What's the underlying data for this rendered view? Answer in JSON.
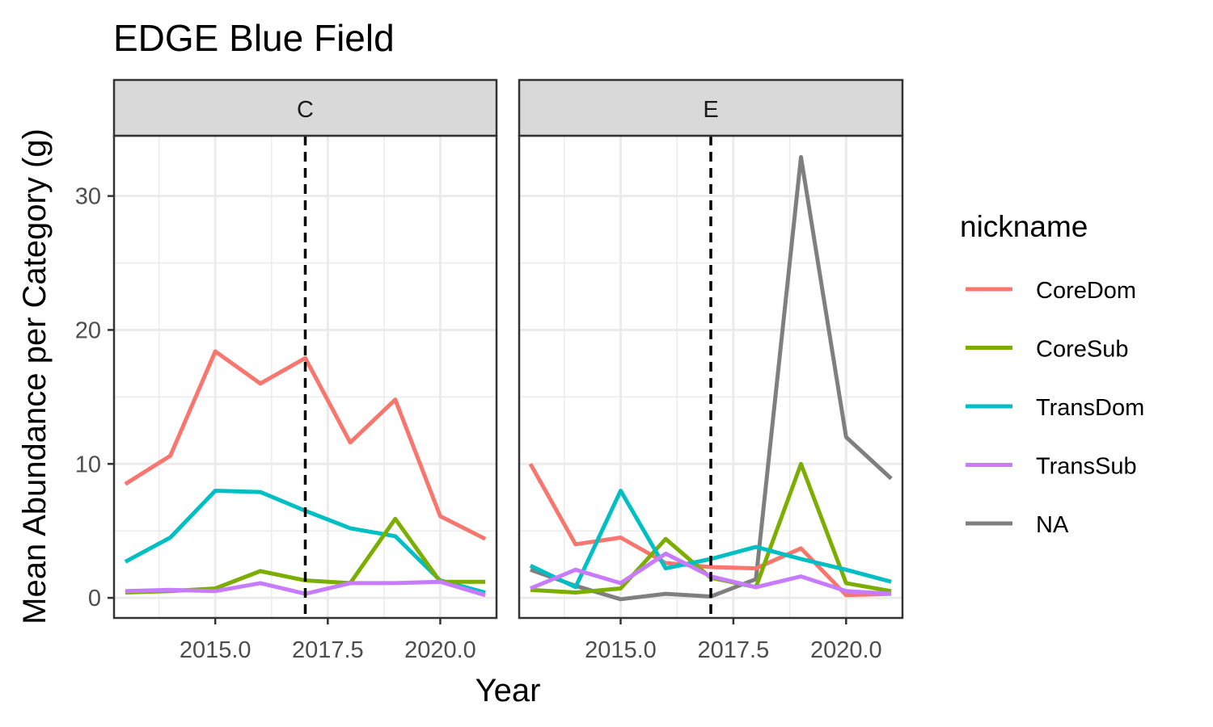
{
  "chart_data": {
    "type": "line",
    "title": "EDGE Blue Field",
    "xlabel": "Year",
    "ylabel": "Mean Abundance per Category (g)",
    "xlim": [
      2012.75,
      2021.25
    ],
    "ylim": [
      -1.5,
      34.5
    ],
    "x_ticks": [
      2015.0,
      2017.5,
      2020.0
    ],
    "x_tick_labels": [
      "2015.0",
      "2017.5",
      "2020.0"
    ],
    "y_ticks": [
      0,
      10,
      20,
      30
    ],
    "y_tick_labels": [
      "0",
      "10",
      "20",
      "30"
    ],
    "reference_line": {
      "x": 2017,
      "style": "dashed"
    },
    "grid": true,
    "legend": {
      "title": "nickname",
      "position": "right",
      "entries": [
        {
          "name": "CoreDom",
          "color": "#F8766D"
        },
        {
          "name": "CoreSub",
          "color": "#7CAE00"
        },
        {
          "name": "TransDom",
          "color": "#00BFC4"
        },
        {
          "name": "TransSub",
          "color": "#C77CFF"
        },
        {
          "name": "NA",
          "color": "#7F7F7F"
        }
      ]
    },
    "panels": [
      {
        "label": "C",
        "series": [
          {
            "name": "CoreDom",
            "x": [
              2013,
              2014,
              2015,
              2016,
              2017,
              2018,
              2019,
              2020,
              2021
            ],
            "values": [
              8.5,
              10.6,
              18.4,
              16.0,
              17.9,
              11.6,
              14.8,
              6.1,
              4.4
            ]
          },
          {
            "name": "TransDom",
            "x": [
              2013,
              2014,
              2015,
              2016,
              2017,
              2018,
              2019,
              2020,
              2021
            ],
            "values": [
              2.7,
              4.5,
              8.0,
              7.9,
              6.5,
              5.2,
              4.6,
              1.3,
              0.4
            ]
          },
          {
            "name": "CoreSub",
            "x": [
              2013,
              2014,
              2015,
              2016,
              2017,
              2018,
              2019,
              2020,
              2021
            ],
            "values": [
              0.4,
              0.5,
              0.7,
              2.0,
              1.3,
              1.1,
              5.9,
              1.2,
              1.2
            ]
          },
          {
            "name": "TransSub",
            "x": [
              2013,
              2014,
              2015,
              2016,
              2017,
              2018,
              2019,
              2020,
              2021
            ],
            "values": [
              0.5,
              0.6,
              0.5,
              1.1,
              0.3,
              1.1,
              1.1,
              1.2,
              0.2
            ]
          }
        ]
      },
      {
        "label": "E",
        "series": [
          {
            "name": "NA",
            "x": [
              2013,
              2014,
              2015,
              2016,
              2017,
              2018,
              2019,
              2020,
              2021
            ],
            "values": [
              2.1,
              0.9,
              -0.1,
              0.3,
              0.1,
              1.4,
              32.9,
              12.0,
              8.9
            ]
          },
          {
            "name": "CoreDom",
            "x": [
              2013,
              2014,
              2015,
              2016,
              2017,
              2018,
              2019,
              2020,
              2021
            ],
            "values": [
              10.0,
              4.0,
              4.5,
              2.6,
              2.3,
              2.2,
              3.7,
              0.2,
              0.3
            ]
          },
          {
            "name": "CoreSub",
            "x": [
              2013,
              2014,
              2015,
              2016,
              2017,
              2018,
              2019,
              2020,
              2021
            ],
            "values": [
              0.6,
              0.4,
              0.7,
              4.4,
              1.5,
              0.8,
              10.0,
              1.1,
              0.5
            ]
          },
          {
            "name": "TransDom",
            "x": [
              2013,
              2014,
              2015,
              2016,
              2017,
              2018,
              2019,
              2020,
              2021
            ],
            "values": [
              2.4,
              0.8,
              8.0,
              2.2,
              2.9,
              3.8,
              2.9,
              2.1,
              1.2
            ]
          },
          {
            "name": "TransSub",
            "x": [
              2013,
              2014,
              2015,
              2016,
              2017,
              2018,
              2019,
              2020,
              2021
            ],
            "values": [
              0.7,
              2.1,
              1.1,
              3.3,
              1.6,
              0.8,
              1.6,
              0.5,
              0.3
            ]
          }
        ]
      }
    ]
  }
}
